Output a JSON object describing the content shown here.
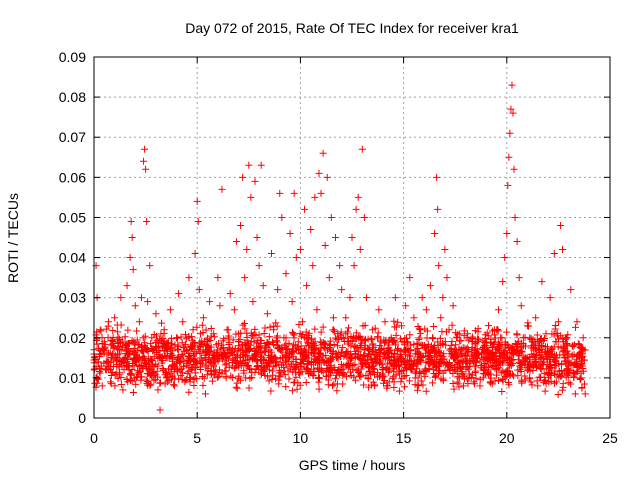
{
  "chart_data": {
    "type": "scatter",
    "title": "Day 072 of 2015, Rate Of TEC Index for receiver kra1",
    "xlabel": "GPS time / hours",
    "ylabel": "ROTI / TECUs",
    "xlim": [
      0,
      25
    ],
    "ylim": [
      0,
      0.09
    ],
    "x_ticks": [
      "0",
      "5",
      "10",
      "15",
      "20",
      "25"
    ],
    "y_ticks": [
      "0",
      "0.01",
      "0.02",
      "0.03",
      "0.04",
      "0.05",
      "0.06",
      "0.07",
      "0.08",
      "0.09"
    ],
    "grid": true,
    "marker": "+",
    "color": "#ff0000",
    "series": [
      {
        "points": [
          [
            0.0,
            0.017
          ],
          [
            0.1,
            0.038
          ],
          [
            0.1,
            0.01
          ],
          [
            0.15,
            0.03
          ],
          [
            0.2,
            0.014
          ],
          [
            0.3,
            0.022
          ],
          [
            0.4,
            0.008
          ],
          [
            0.5,
            0.019
          ],
          [
            0.6,
            0.012
          ],
          [
            0.7,
            0.024
          ],
          [
            0.8,
            0.009
          ],
          [
            0.9,
            0.016
          ],
          [
            1.0,
            0.025
          ],
          [
            1.1,
            0.011
          ],
          [
            1.2,
            0.02
          ],
          [
            1.3,
            0.03
          ],
          [
            1.4,
            0.007
          ],
          [
            1.5,
            0.018
          ],
          [
            1.6,
            0.033
          ],
          [
            1.7,
            0.012
          ],
          [
            1.75,
            0.04
          ],
          [
            1.8,
            0.049
          ],
          [
            1.85,
            0.045
          ],
          [
            1.9,
            0.037
          ],
          [
            2.0,
            0.028
          ],
          [
            2.1,
            0.015
          ],
          [
            2.2,
            0.024
          ],
          [
            2.3,
            0.03
          ],
          [
            2.4,
            0.064
          ],
          [
            2.45,
            0.067
          ],
          [
            2.5,
            0.062
          ],
          [
            2.55,
            0.049
          ],
          [
            2.6,
            0.029
          ],
          [
            2.7,
            0.038
          ],
          [
            2.8,
            0.02
          ],
          [
            2.9,
            0.011
          ],
          [
            3.0,
            0.026
          ],
          [
            3.1,
            0.007
          ],
          [
            3.2,
            0.002
          ],
          [
            3.3,
            0.015
          ],
          [
            3.4,
            0.022
          ],
          [
            3.5,
            0.01
          ],
          [
            3.6,
            0.018
          ],
          [
            3.7,
            0.027
          ],
          [
            3.8,
            0.013
          ],
          [
            3.9,
            0.008
          ],
          [
            4.0,
            0.02
          ],
          [
            4.1,
            0.031
          ],
          [
            4.2,
            0.014
          ],
          [
            4.3,
            0.024
          ],
          [
            4.4,
            0.009
          ],
          [
            4.5,
            0.017
          ],
          [
            4.6,
            0.035
          ],
          [
            4.7,
            0.012
          ],
          [
            4.8,
            0.022
          ],
          [
            4.9,
            0.041
          ],
          [
            5.0,
            0.054
          ],
          [
            5.05,
            0.049
          ],
          [
            5.1,
            0.032
          ],
          [
            5.2,
            0.015
          ],
          [
            5.3,
            0.025
          ],
          [
            5.4,
            0.006
          ],
          [
            5.5,
            0.018
          ],
          [
            5.6,
            0.029
          ],
          [
            5.7,
            0.011
          ],
          [
            5.8,
            0.021
          ],
          [
            5.9,
            0.014
          ],
          [
            6.0,
            0.035
          ],
          [
            6.1,
            0.028
          ],
          [
            6.2,
            0.057
          ],
          [
            6.3,
            0.016
          ],
          [
            6.4,
            0.01
          ],
          [
            6.5,
            0.022
          ],
          [
            6.6,
            0.031
          ],
          [
            6.7,
            0.013
          ],
          [
            6.8,
            0.027
          ],
          [
            6.9,
            0.044
          ],
          [
            7.0,
            0.019
          ],
          [
            7.1,
            0.048
          ],
          [
            7.2,
            0.06
          ],
          [
            7.3,
            0.035
          ],
          [
            7.4,
            0.042
          ],
          [
            7.5,
            0.063
          ],
          [
            7.6,
            0.055
          ],
          [
            7.7,
            0.029
          ],
          [
            7.8,
            0.059
          ],
          [
            7.9,
            0.045
          ],
          [
            8.0,
            0.038
          ],
          [
            8.1,
            0.063
          ],
          [
            8.2,
            0.033
          ],
          [
            8.3,
            0.018
          ],
          [
            8.4,
            0.026
          ],
          [
            8.5,
            0.012
          ],
          [
            8.6,
            0.041
          ],
          [
            8.7,
            0.022
          ],
          [
            8.8,
            0.015
          ],
          [
            8.9,
            0.032
          ],
          [
            9.0,
            0.056
          ],
          [
            9.1,
            0.05
          ],
          [
            9.2,
            0.02
          ],
          [
            9.3,
            0.036
          ],
          [
            9.4,
            0.014
          ],
          [
            9.5,
            0.046
          ],
          [
            9.6,
            0.029
          ],
          [
            9.7,
            0.056
          ],
          [
            9.8,
            0.04
          ],
          [
            9.9,
            0.019
          ],
          [
            10.0,
            0.042
          ],
          [
            10.1,
            0.024
          ],
          [
            10.2,
            0.052
          ],
          [
            10.3,
            0.033
          ],
          [
            10.4,
            0.015
          ],
          [
            10.5,
            0.047
          ],
          [
            10.6,
            0.038
          ],
          [
            10.7,
            0.055
          ],
          [
            10.8,
            0.027
          ],
          [
            10.9,
            0.061
          ],
          [
            11.0,
            0.056
          ],
          [
            11.1,
            0.066
          ],
          [
            11.2,
            0.043
          ],
          [
            11.3,
            0.06
          ],
          [
            11.4,
            0.035
          ],
          [
            11.5,
            0.05
          ],
          [
            11.6,
            0.025
          ],
          [
            11.7,
            0.045
          ],
          [
            11.8,
            0.018
          ],
          [
            11.9,
            0.038
          ],
          [
            12.0,
            0.032
          ],
          [
            12.1,
            0.013
          ],
          [
            12.2,
            0.025
          ],
          [
            12.3,
            0.019
          ],
          [
            12.4,
            0.03
          ],
          [
            12.5,
            0.045
          ],
          [
            12.6,
            0.038
          ],
          [
            12.7,
            0.052
          ],
          [
            12.8,
            0.055
          ],
          [
            12.9,
            0.042
          ],
          [
            13.0,
            0.067
          ],
          [
            13.1,
            0.05
          ],
          [
            13.2,
            0.03
          ],
          [
            13.3,
            0.016
          ],
          [
            13.4,
            0.011
          ],
          [
            13.5,
            0.022
          ],
          [
            13.6,
            0.008
          ],
          [
            13.7,
            0.014
          ],
          [
            13.8,
            0.027
          ],
          [
            13.9,
            0.019
          ],
          [
            14.0,
            0.012
          ],
          [
            14.1,
            0.024
          ],
          [
            14.2,
            0.016
          ],
          [
            14.3,
            0.009
          ],
          [
            14.4,
            0.02
          ],
          [
            14.5,
            0.013
          ],
          [
            14.6,
            0.03
          ],
          [
            14.7,
            0.017
          ],
          [
            14.8,
            0.011
          ],
          [
            14.9,
            0.023
          ],
          [
            15.0,
            0.014
          ],
          [
            15.1,
            0.028
          ],
          [
            15.2,
            0.019
          ],
          [
            15.3,
            0.035
          ],
          [
            15.4,
            0.012
          ],
          [
            15.5,
            0.025
          ],
          [
            15.6,
            0.017
          ],
          [
            15.7,
            0.01
          ],
          [
            15.8,
            0.022
          ],
          [
            15.9,
            0.03
          ],
          [
            16.0,
            0.018
          ],
          [
            16.1,
            0.027
          ],
          [
            16.2,
            0.014
          ],
          [
            16.3,
            0.033
          ],
          [
            16.4,
            0.02
          ],
          [
            16.5,
            0.046
          ],
          [
            16.6,
            0.06
          ],
          [
            16.65,
            0.052
          ],
          [
            16.7,
            0.038
          ],
          [
            16.8,
            0.025
          ],
          [
            16.9,
            0.03
          ],
          [
            17.0,
            0.042
          ],
          [
            17.1,
            0.035
          ],
          [
            17.2,
            0.022
          ],
          [
            17.3,
            0.017
          ],
          [
            17.4,
            0.028
          ],
          [
            17.5,
            0.012
          ],
          [
            17.6,
            0.02
          ],
          [
            17.7,
            0.01
          ],
          [
            17.8,
            0.016
          ],
          [
            17.9,
            0.008
          ],
          [
            18.0,
            0.014
          ],
          [
            18.1,
            0.021
          ],
          [
            18.2,
            0.011
          ],
          [
            18.3,
            0.017
          ],
          [
            18.4,
            0.009
          ],
          [
            18.5,
            0.013
          ],
          [
            18.6,
            0.019
          ],
          [
            18.7,
            0.008
          ],
          [
            18.8,
            0.015
          ],
          [
            18.9,
            0.011
          ],
          [
            19.0,
            0.018
          ],
          [
            19.1,
            0.012
          ],
          [
            19.2,
            0.009
          ],
          [
            19.3,
            0.016
          ],
          [
            19.4,
            0.022
          ],
          [
            19.5,
            0.013
          ],
          [
            19.6,
            0.027
          ],
          [
            19.7,
            0.02
          ],
          [
            19.8,
            0.034
          ],
          [
            19.9,
            0.04
          ],
          [
            20.0,
            0.046
          ],
          [
            20.05,
            0.058
          ],
          [
            20.1,
            0.065
          ],
          [
            20.15,
            0.071
          ],
          [
            20.2,
            0.077
          ],
          [
            20.25,
            0.083
          ],
          [
            20.3,
            0.076
          ],
          [
            20.35,
            0.062
          ],
          [
            20.4,
            0.05
          ],
          [
            20.5,
            0.044
          ],
          [
            20.6,
            0.035
          ],
          [
            20.7,
            0.028
          ],
          [
            20.8,
            0.02
          ],
          [
            20.9,
            0.015
          ],
          [
            21.0,
            0.023
          ],
          [
            21.1,
            0.01
          ],
          [
            21.2,
            0.018
          ],
          [
            21.3,
            0.013
          ],
          [
            21.4,
            0.025
          ],
          [
            21.5,
            0.008
          ],
          [
            21.6,
            0.019
          ],
          [
            21.7,
            0.034
          ],
          [
            21.8,
            0.014
          ],
          [
            21.9,
            0.021
          ],
          [
            22.0,
            0.011
          ],
          [
            22.1,
            0.03
          ],
          [
            22.2,
            0.016
          ],
          [
            22.3,
            0.041
          ],
          [
            22.4,
            0.009
          ],
          [
            22.5,
            0.024
          ],
          [
            22.6,
            0.048
          ],
          [
            22.7,
            0.042
          ],
          [
            22.8,
            0.015
          ],
          [
            22.9,
            0.02
          ],
          [
            23.0,
            0.013
          ],
          [
            23.1,
            0.032
          ],
          [
            23.2,
            0.018
          ],
          [
            23.3,
            0.011
          ],
          [
            23.4,
            0.024
          ],
          [
            23.5,
            0.016
          ],
          [
            23.6,
            0.01
          ],
          [
            23.7,
            0.02
          ],
          [
            23.8,
            0.006
          ]
        ]
      }
    ],
    "dense_band": {
      "x_range": [
        0,
        23.8
      ],
      "y_min": 0.005,
      "y_max": 0.025
    }
  }
}
